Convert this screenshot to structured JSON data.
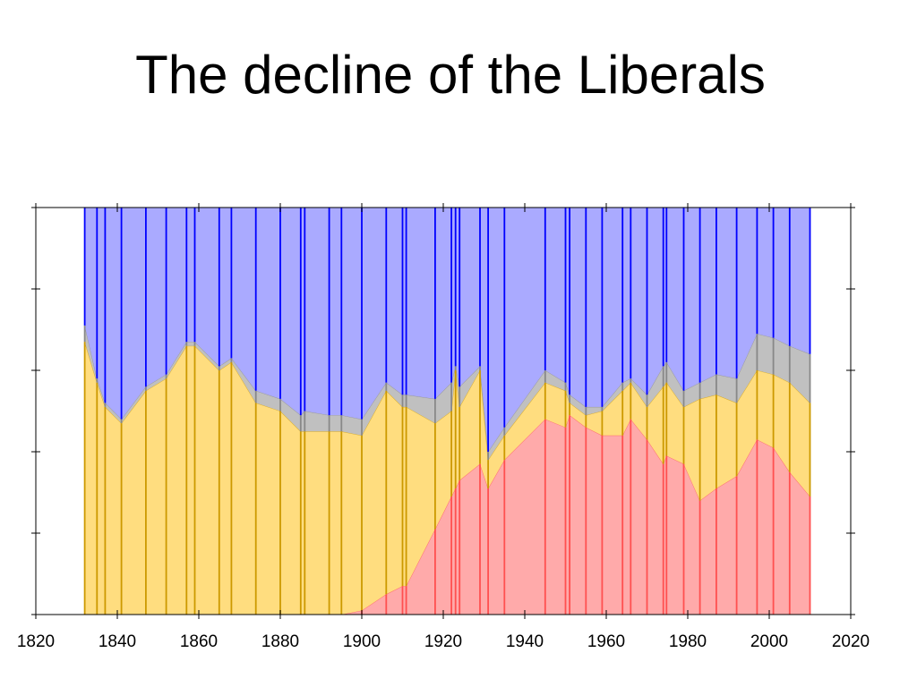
{
  "slide": {
    "title": "The decline of the Liberals"
  },
  "chart_data": {
    "type": "area",
    "stacked": true,
    "normalized": true,
    "title": "The decline of the Liberals",
    "xlabel": "",
    "ylabel": "",
    "xlim": [
      1820,
      2020
    ],
    "ylim": [
      0,
      1
    ],
    "x_ticks": [
      1820,
      1840,
      1860,
      1880,
      1900,
      1920,
      1940,
      1960,
      1980,
      2000,
      2020
    ],
    "y_ticks": [
      0,
      0.2,
      0.4,
      0.6,
      0.8,
      1.0
    ],
    "y_tick_labels_shown": false,
    "grid": false,
    "legend": "none",
    "election_years": [
      1832,
      1835,
      1837,
      1841,
      1847,
      1852,
      1857,
      1859,
      1865,
      1868,
      1874,
      1880,
      1885,
      1886,
      1892,
      1895,
      1900,
      1906,
      1910,
      1910.9,
      1918,
      1922,
      1923,
      1924,
      1929,
      1931,
      1935,
      1945,
      1950,
      1951,
      1955,
      1959,
      1964,
      1966,
      1970,
      1974,
      1974.8,
      1979,
      1983,
      1987,
      1992,
      1997,
      2001,
      2005,
      2010
    ],
    "series": [
      {
        "name": "",
        "color": "#ff5050",
        "fill": "#ffaaaa",
        "values": [
          0,
          0,
          0,
          0,
          0,
          0,
          0,
          0,
          0,
          0,
          0,
          0,
          0,
          0,
          0,
          0,
          0.01,
          0.05,
          0.07,
          0.07,
          0.21,
          0.29,
          0.31,
          0.33,
          0.37,
          0.31,
          0.38,
          0.48,
          0.46,
          0.49,
          0.46,
          0.44,
          0.44,
          0.48,
          0.43,
          0.37,
          0.39,
          0.37,
          0.28,
          0.31,
          0.34,
          0.43,
          0.41,
          0.35,
          0.29
        ]
      },
      {
        "name": "",
        "color": "#cc9900",
        "fill": "#ffdd7f",
        "values": [
          0.67,
          0.57,
          0.51,
          0.47,
          0.55,
          0.58,
          0.66,
          0.66,
          0.6,
          0.62,
          0.52,
          0.5,
          0.45,
          0.45,
          0.45,
          0.45,
          0.43,
          0.5,
          0.44,
          0.44,
          0.26,
          0.21,
          0.29,
          0.18,
          0.23,
          0.07,
          0.06,
          0.09,
          0.09,
          0.03,
          0.03,
          0.06,
          0.11,
          0.09,
          0.08,
          0.19,
          0.18,
          0.14,
          0.25,
          0.23,
          0.18,
          0.17,
          0.18,
          0.22,
          0.23
        ]
      },
      {
        "name": "",
        "color": "#888888",
        "fill": "#c0c0c0",
        "values": [
          0.04,
          0.01,
          0.01,
          0.01,
          0.01,
          0.01,
          0.01,
          0.01,
          0.01,
          0.01,
          0.03,
          0.03,
          0.04,
          0.05,
          0.04,
          0.04,
          0.04,
          0.02,
          0.03,
          0.03,
          0.06,
          0.07,
          0.01,
          0.05,
          0.01,
          0.02,
          0.02,
          0.03,
          0.02,
          0.02,
          0.02,
          0.01,
          0.02,
          0.01,
          0.03,
          0.05,
          0.05,
          0.04,
          0.04,
          0.05,
          0.06,
          0.09,
          0.09,
          0.09,
          0.12
        ]
      },
      {
        "name": "",
        "color": "#0000ff",
        "fill": "#aaaaff",
        "values": [
          0.29,
          0.42,
          0.48,
          0.52,
          0.44,
          0.41,
          0.33,
          0.33,
          0.39,
          0.37,
          0.45,
          0.47,
          0.51,
          0.5,
          0.51,
          0.51,
          0.52,
          0.43,
          0.46,
          0.46,
          0.47,
          0.43,
          0.39,
          0.44,
          0.39,
          0.6,
          0.54,
          0.4,
          0.43,
          0.46,
          0.49,
          0.49,
          0.43,
          0.42,
          0.46,
          0.39,
          0.38,
          0.45,
          0.43,
          0.41,
          0.42,
          0.31,
          0.32,
          0.34,
          0.36
        ]
      }
    ]
  }
}
